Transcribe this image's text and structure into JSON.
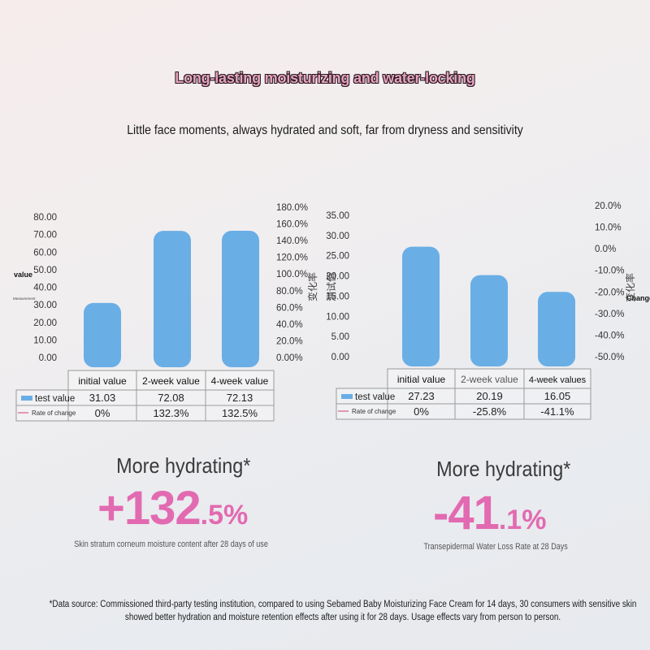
{
  "header": {
    "headline": "Long-lasting moisturizing and water-locking",
    "subline": "Little face moments, always hydrated and soft, far from dryness and sensitivity"
  },
  "colors": {
    "bar": "#6aaee6",
    "accent_pink": "#e26ab1",
    "rate_line": "#d95c8e"
  },
  "chart_data": [
    {
      "type": "bar",
      "categories": [
        "initial value",
        "2-week value",
        "4-week value"
      ],
      "series": [
        {
          "name": "test value",
          "values": [
            31.03,
            72.08,
            72.13
          ],
          "display": [
            "31.03",
            "72.08",
            "72.13"
          ]
        },
        {
          "name": "Rate of change",
          "values": [
            0,
            132.3,
            132.5
          ],
          "display": [
            "0%",
            "132.3%",
            "132.5%"
          ]
        }
      ],
      "ylim": [
        0,
        80
      ],
      "yticks": [
        "80.00",
        "70.00",
        "60.00",
        "50.00",
        "40.00",
        "30.00",
        "20.00",
        "10.00",
        "0.00"
      ],
      "y2lim": [
        0,
        180
      ],
      "y2ticks": [
        "180.0%",
        "160.0%",
        "140.0%",
        "120.0%",
        "100.0%",
        "80.0%",
        "60.0%",
        "40.0%",
        "20.0%",
        "0.00%"
      ],
      "ylabel": "value",
      "ylabel_small": "Measurement",
      "y2label": "变化率",
      "legend_placement": "table-left"
    },
    {
      "type": "bar",
      "categories": [
        "initial value",
        "2-week value",
        "4-week values"
      ],
      "series": [
        {
          "name": "test value",
          "values": [
            27.23,
            20.19,
            16.05
          ],
          "display": [
            "27.23",
            "20.19",
            "16.05"
          ]
        },
        {
          "name": "Rate of change",
          "values": [
            0,
            -25.8,
            -41.1
          ],
          "display": [
            "0%",
            "-25.8%",
            "-41.1%"
          ]
        }
      ],
      "ylim": [
        0,
        35
      ],
      "yticks": [
        "35.00",
        "30.00",
        "25.00",
        "20.00",
        "15.00",
        "10.00",
        "5.00",
        "0.00"
      ],
      "y2lim": [
        -50,
        20
      ],
      "y2ticks": [
        "20.0%",
        "10.0%",
        "0.0%",
        "-10.0%",
        "-20.0%",
        "-30.0%",
        "-40.0%",
        "-50.0%"
      ],
      "ylabel": "测试值",
      "y2label": "变化率",
      "y2label_en": "Change",
      "legend_placement": "table-left"
    }
  ],
  "claims": [
    {
      "title": "More hydrating*",
      "sign": "+",
      "main": "132",
      "frac": ".5%",
      "caption": "Skin stratum corneum moisture content after 28 days of use"
    },
    {
      "title": "More hydrating*",
      "sign": "-",
      "main": "41",
      "frac": ".1%",
      "caption": "Transepidermal Water Loss Rate at 28 Days"
    }
  ],
  "footnote": "*Data source: Commissioned third-party testing institution, compared to using Sebamed Baby Moisturizing Face Cream for 14 days, 30 consumers with sensitive skin showed better hydration and moisture retention effects after using it for 28 days. Usage effects vary from person to person."
}
